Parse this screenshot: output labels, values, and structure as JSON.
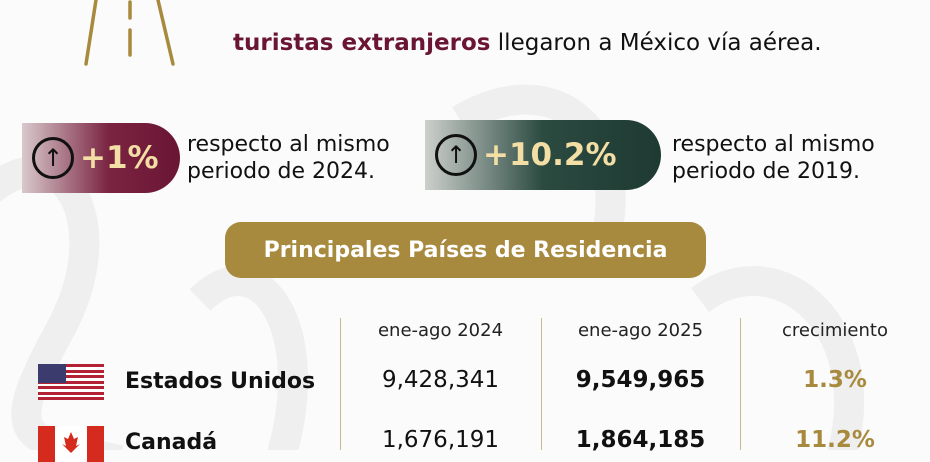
{
  "headline": {
    "emphasis": "turistas extranjeros",
    "rest": " llegaron a México vía aérea."
  },
  "badges": [
    {
      "value": "+1%",
      "icon": "arrow-up-circle-icon",
      "text_line1": "respecto al mismo",
      "text_line2": "periodo de 2024.",
      "color": "#6b1535"
    },
    {
      "value": "+10.2%",
      "icon": "arrow-up-circle-icon",
      "text_line1": "respecto al mismo",
      "text_line2": "periodo de 2019.",
      "color": "#1e3a32"
    }
  ],
  "section_title": "Principales Países de Residencia",
  "table": {
    "headers": [
      "ene-ago 2024",
      "ene-ago 2025",
      "crecimiento"
    ],
    "rows": [
      {
        "country": "Estados Unidos",
        "flag": "us-flag-icon",
        "y2024": "9,428,341",
        "y2025": "9,549,965",
        "growth": "1.3%"
      },
      {
        "country": "Canadá",
        "flag": "canada-flag-icon",
        "y2024": "1,676,191",
        "y2025": "1,864,185",
        "growth": "11.2%"
      }
    ]
  },
  "colors": {
    "maroon": "#6b1535",
    "gold": "#a88a3e",
    "green": "#1e3a32"
  }
}
